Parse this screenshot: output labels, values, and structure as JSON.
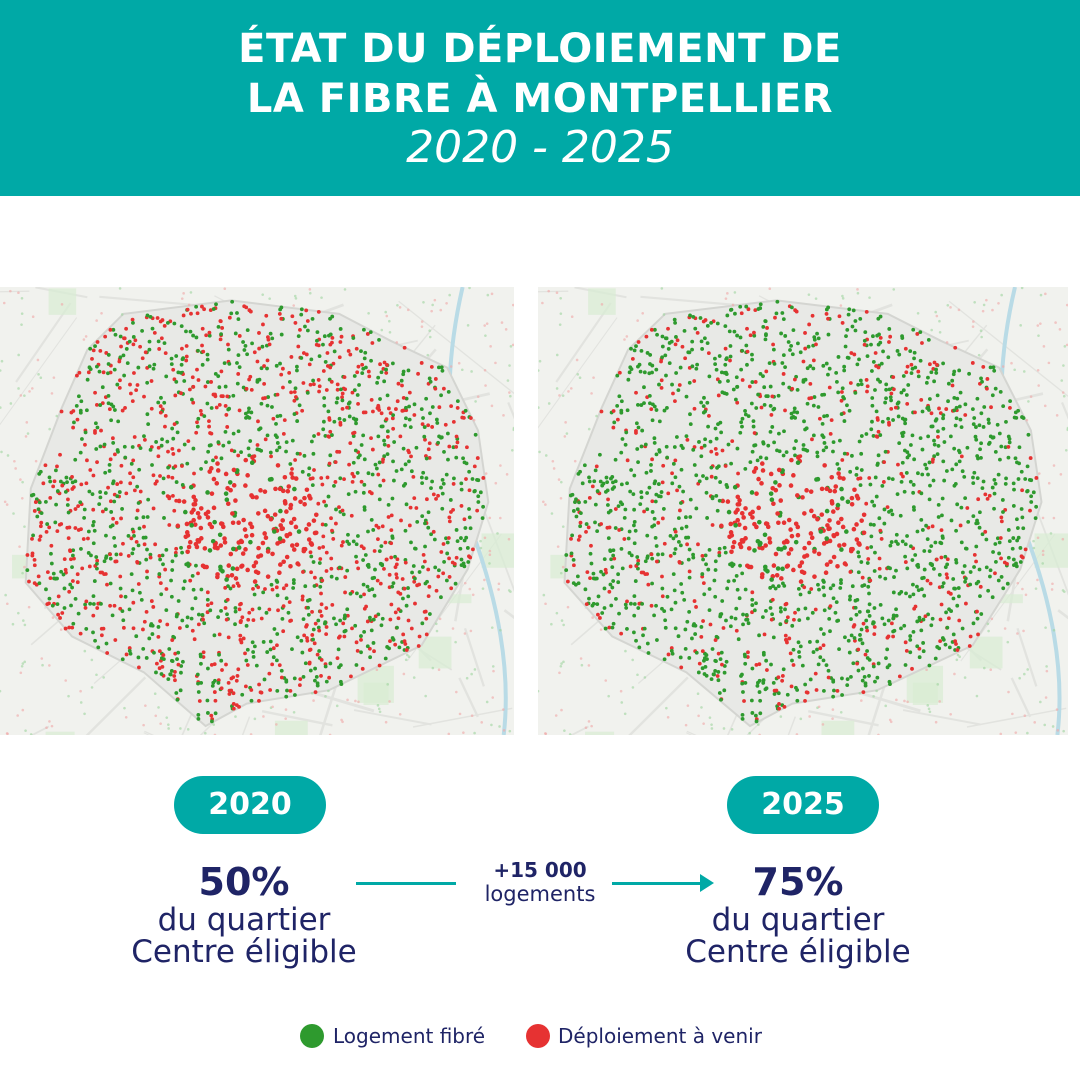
{
  "header": {
    "title_line1": "ÉTAT DU DÉPLOIEMENT DE",
    "title_line2": "LA FIBRE À MONTPELLIER",
    "subtitle": "2020 - 2025"
  },
  "colors": {
    "teal": "#00a9a6",
    "navy": "#1f2466",
    "fibre_green": "#2e9a2e",
    "pending_red": "#e63232"
  },
  "maps": [
    {
      "year": "2020",
      "fibre_share": 0.5
    },
    {
      "year": "2025",
      "fibre_share": 0.75
    }
  ],
  "stats": {
    "left": {
      "year": "2020",
      "percent": "50%",
      "line1": "du quartier",
      "line2": "Centre éligible"
    },
    "right": {
      "year": "2025",
      "percent": "75%",
      "line1": "du quartier",
      "line2": "Centre éligible"
    },
    "delta": {
      "number": "+15 000",
      "unit": "logements"
    }
  },
  "legend": [
    {
      "label": "Logement fibré",
      "color": "#2e9a2e"
    },
    {
      "label": "Déploiement à venir",
      "color": "#e63232"
    }
  ]
}
